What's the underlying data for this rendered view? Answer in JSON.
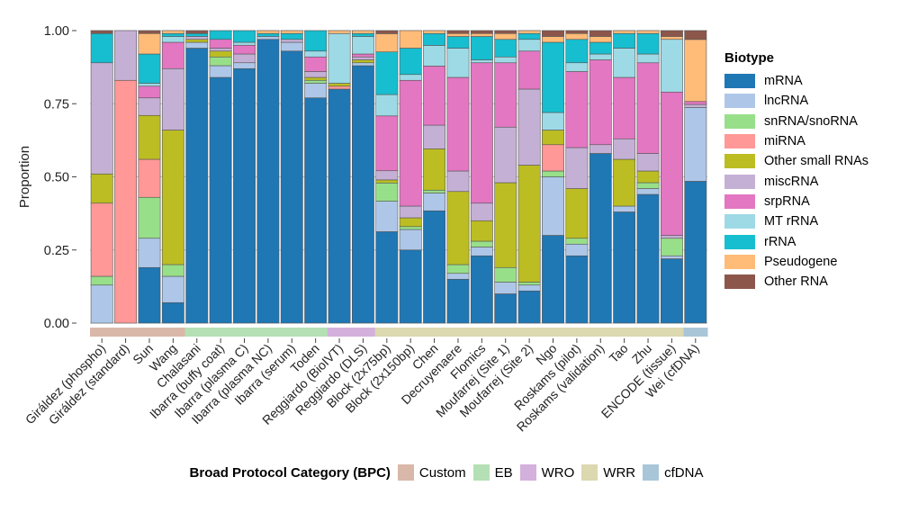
{
  "chart_data": {
    "type": "bar",
    "stacked": true,
    "ylabel": "Proportion",
    "xlabel": "",
    "ylim": [
      0,
      1
    ],
    "yticks": [
      "0.00",
      "0.25",
      "0.50",
      "0.75",
      "1.00"
    ],
    "legend_title": "Biotype",
    "biotypes": [
      "mRNA",
      "lncRNA",
      "snRNA/snoRNA",
      "miRNA",
      "Other small RNAs",
      "miscRNA",
      "srpRNA",
      "MT rRNA",
      "rRNA",
      "Pseudogene",
      "Other RNA"
    ],
    "biotype_colors": [
      "#1f77b4",
      "#aec7e8",
      "#98df8a",
      "#ff9896",
      "#bcbd22",
      "#c5b0d5",
      "#e377c2",
      "#9edae5",
      "#17becf",
      "#ffbb78",
      "#8c564b"
    ],
    "bpc_title": "Broad Protocol Category (BPC)",
    "bpc_categories": [
      "Custom",
      "EB",
      "WRO",
      "WRR",
      "cfDNA"
    ],
    "bpc_colors": [
      "#d9b8a9",
      "#b5e0b5",
      "#d4b0dc",
      "#dcd8b0",
      "#a9c6d9"
    ],
    "categories": [
      "Giráldez (phospho)",
      "Giráldez (standard)",
      "Sun",
      "Wang",
      "Chalasani",
      "Ibarra (buffy coat)",
      "Ibarra (plasma C)",
      "Ibarra (plasma NC)",
      "Ibarra (serum)",
      "Toden",
      "Reggiardo (BioIVT)",
      "Reggiardo (DLS)",
      "Block (2x75bp)",
      "Block (2x150bp)",
      "Chen",
      "Decruyenaere",
      "Flomics",
      "Moufarrej (Site 1)",
      "Moufarrej (Site 2)",
      "Ngo",
      "Roskams (pilot)",
      "Roskams (validation)",
      "Tao",
      "Zhu",
      "ENCODE (tissue)",
      "Wei (cfDNA)"
    ],
    "bpc": [
      "Custom",
      "Custom",
      "Custom",
      "Custom",
      "EB",
      "EB",
      "EB",
      "EB",
      "EB",
      "EB",
      "WRO",
      "WRO",
      "WRR",
      "WRR",
      "WRR",
      "WRR",
      "WRR",
      "WRR",
      "WRR",
      "WRR",
      "WRR",
      "WRR",
      "WRR",
      "WRR",
      "WRR",
      "cfDNA"
    ],
    "values": [
      [
        0.0,
        0.13,
        0.03,
        0.25,
        0.1,
        0.38,
        0.0,
        0.0,
        0.1,
        0.0,
        0.01
      ],
      [
        0.0,
        0.0,
        0.0,
        0.83,
        0.0,
        0.17,
        0.0,
        0.0,
        0.0,
        0.0,
        0.0
      ],
      [
        0.19,
        0.1,
        0.14,
        0.13,
        0.15,
        0.06,
        0.04,
        0.01,
        0.1,
        0.07,
        0.01
      ],
      [
        0.07,
        0.09,
        0.04,
        0.0,
        0.46,
        0.21,
        0.09,
        0.02,
        0.01,
        0.01,
        0.0
      ],
      [
        0.94,
        0.02,
        0.0,
        0.0,
        0.01,
        0.01,
        0.0,
        0.0,
        0.01,
        0.0,
        0.01
      ],
      [
        0.84,
        0.04,
        0.03,
        0.0,
        0.02,
        0.01,
        0.03,
        0.0,
        0.03,
        0.0,
        0.0
      ],
      [
        0.87,
        0.02,
        0.0,
        0.0,
        0.0,
        0.03,
        0.03,
        0.01,
        0.04,
        0.0,
        0.0
      ],
      [
        0.97,
        0.01,
        0.0,
        0.0,
        0.0,
        0.0,
        0.0,
        0.0,
        0.01,
        0.01,
        0.0
      ],
      [
        0.93,
        0.03,
        0.0,
        0.0,
        0.0,
        0.01,
        0.0,
        0.0,
        0.02,
        0.01,
        0.0
      ],
      [
        0.77,
        0.05,
        0.01,
        0.0,
        0.01,
        0.02,
        0.05,
        0.02,
        0.07,
        0.0,
        0.0
      ],
      [
        0.8,
        0.0,
        0.0,
        0.01,
        0.01,
        0.0,
        0.0,
        0.17,
        0.0,
        0.01,
        0.0
      ],
      [
        0.88,
        0.01,
        0.0,
        0.0,
        0.01,
        0.01,
        0.01,
        0.06,
        0.01,
        0.01,
        0.0
      ],
      [
        0.3,
        0.1,
        0.06,
        0.0,
        0.01,
        0.03,
        0.18,
        0.07,
        0.14,
        0.06,
        0.01
      ],
      [
        0.25,
        0.07,
        0.01,
        0.0,
        0.03,
        0.04,
        0.43,
        0.02,
        0.09,
        0.06,
        0.0
      ],
      [
        0.38,
        0.06,
        0.01,
        0.0,
        0.14,
        0.08,
        0.2,
        0.07,
        0.04,
        0.01,
        0.0
      ],
      [
        0.15,
        0.02,
        0.03,
        0.0,
        0.25,
        0.07,
        0.32,
        0.1,
        0.04,
        0.01,
        0.01
      ],
      [
        0.23,
        0.03,
        0.02,
        0.0,
        0.07,
        0.06,
        0.48,
        0.01,
        0.08,
        0.01,
        0.01
      ],
      [
        0.1,
        0.04,
        0.05,
        0.0,
        0.29,
        0.19,
        0.22,
        0.02,
        0.06,
        0.02,
        0.01
      ],
      [
        0.11,
        0.02,
        0.01,
        0.0,
        0.4,
        0.26,
        0.13,
        0.04,
        0.02,
        0.01,
        0.0
      ],
      [
        0.3,
        0.2,
        0.02,
        0.09,
        0.05,
        0.0,
        0.0,
        0.06,
        0.24,
        0.02,
        0.02
      ],
      [
        0.23,
        0.04,
        0.02,
        0.0,
        0.17,
        0.14,
        0.26,
        0.03,
        0.08,
        0.02,
        0.01
      ],
      [
        0.58,
        0.0,
        0.0,
        0.0,
        0.0,
        0.03,
        0.29,
        0.02,
        0.04,
        0.02,
        0.02
      ],
      [
        0.38,
        0.02,
        0.0,
        0.0,
        0.16,
        0.07,
        0.21,
        0.1,
        0.05,
        0.01,
        0.0
      ],
      [
        0.44,
        0.02,
        0.02,
        0.0,
        0.04,
        0.06,
        0.31,
        0.03,
        0.07,
        0.01,
        0.0
      ],
      [
        0.22,
        0.01,
        0.06,
        0.0,
        0.0,
        0.01,
        0.49,
        0.18,
        0.0,
        0.01,
        0.02
      ],
      [
        0.48,
        0.25,
        0.0,
        0.0,
        0.0,
        0.01,
        0.01,
        0.0,
        0.0,
        0.21,
        0.03
      ]
    ]
  }
}
